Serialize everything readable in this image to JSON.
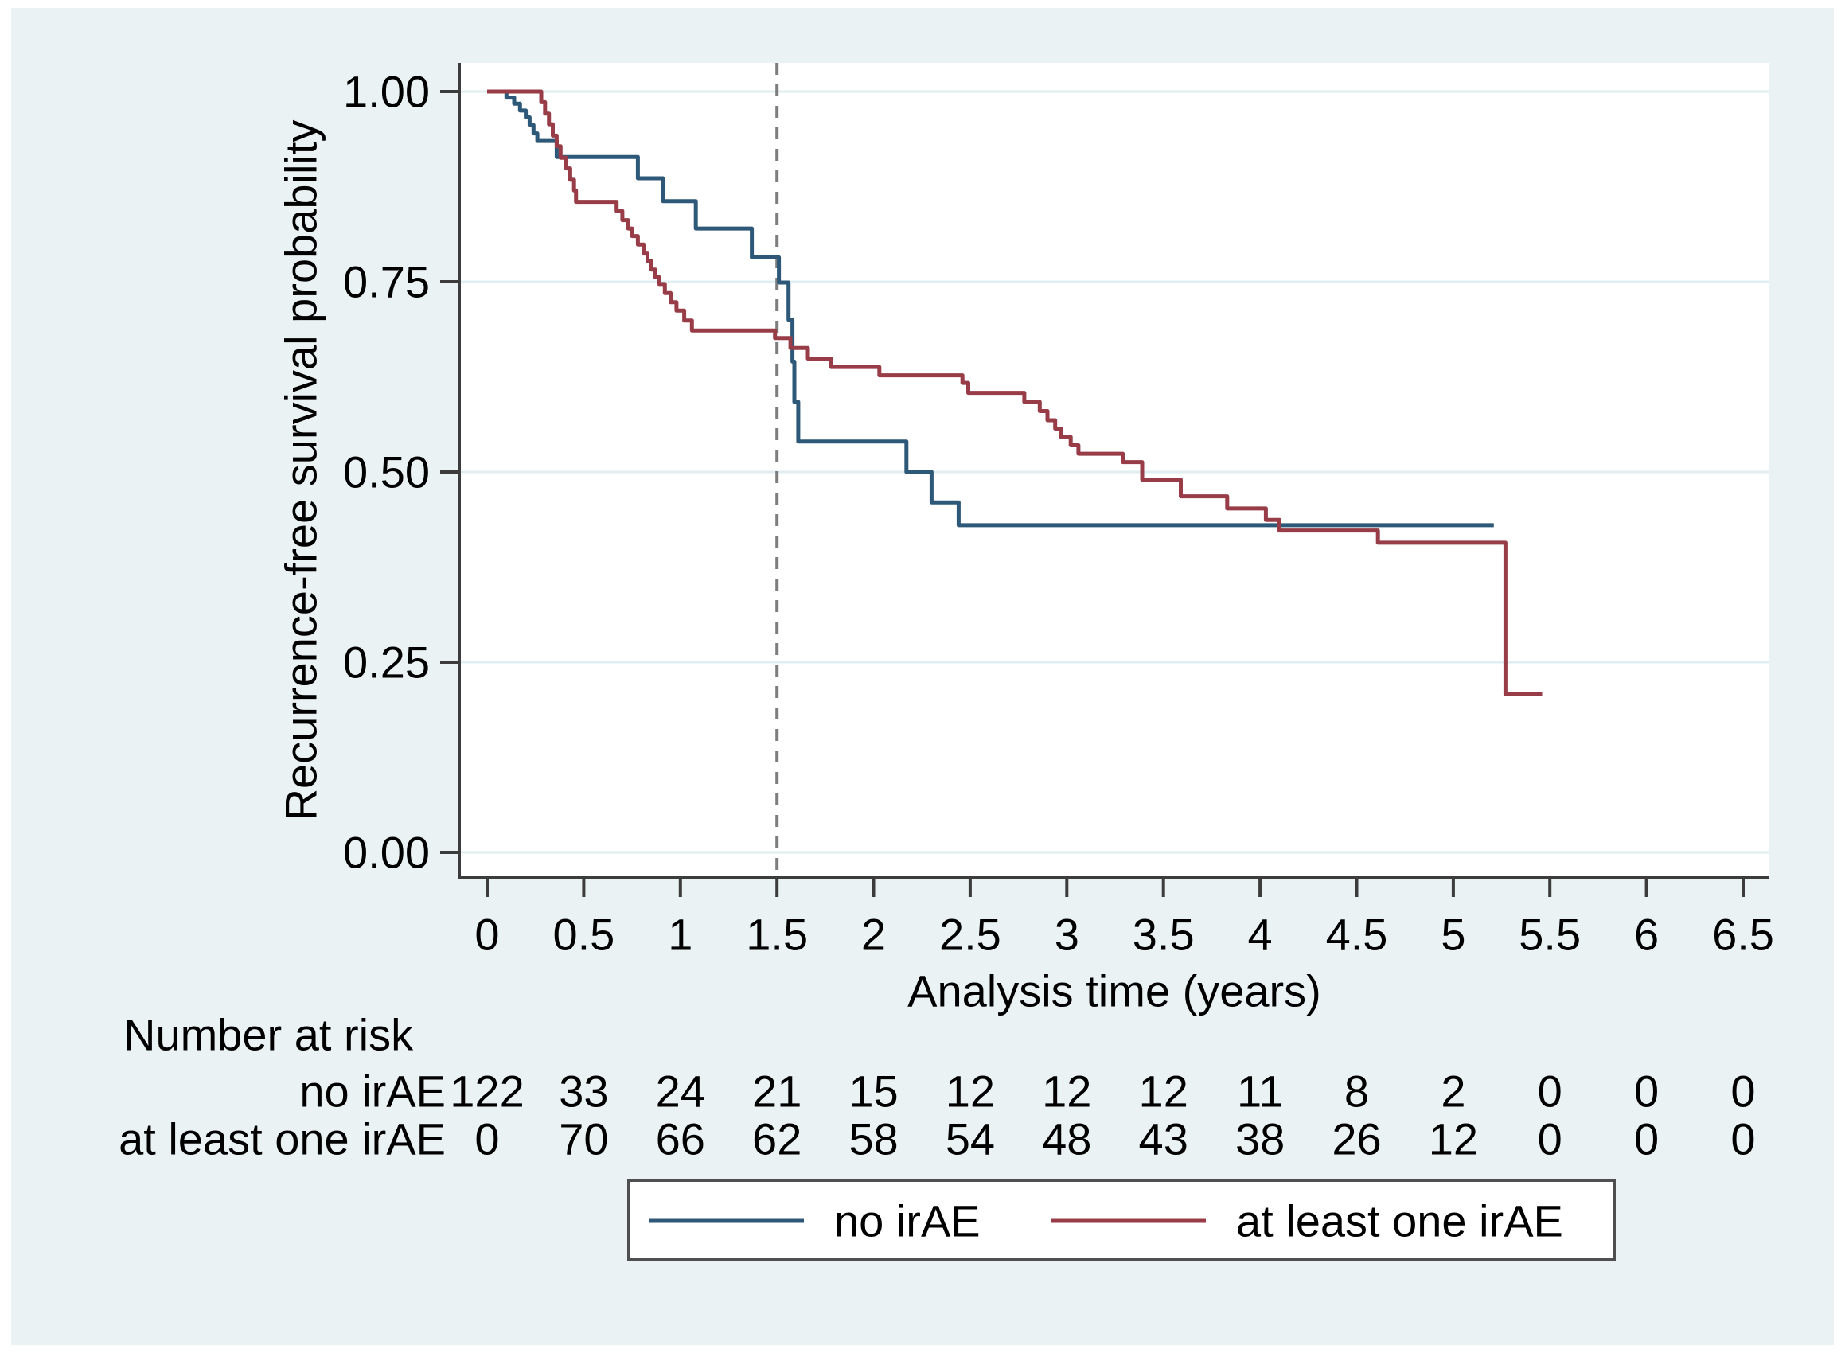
{
  "page": {
    "background": "#ffffff",
    "canvas_background": "#eaf2f3"
  },
  "style": {
    "axis_color": "#3c3c3c",
    "grid_color": "#dfeef1",
    "text_color": "#000000",
    "reference_line_color": "#7d7d7d",
    "legend_border_color": "#4f4f4f",
    "plot_background": "#ffffff"
  },
  "chart_data": {
    "type": "line",
    "subtype": "kaplan-meier-step",
    "title": "",
    "xlabel": "Analysis time (years)",
    "ylabel": "Recurrence-free survival probability",
    "xlim": [
      0,
      6.5
    ],
    "ylim": [
      0,
      1
    ],
    "grid": "horizontal",
    "legend_position": "bottom",
    "reference_line": {
      "x": 1.5,
      "style": "dashed"
    },
    "xticks": [
      {
        "value": 0,
        "label": "0"
      },
      {
        "value": 0.5,
        "label": "0.5"
      },
      {
        "value": 1,
        "label": "1"
      },
      {
        "value": 1.5,
        "label": "1.5"
      },
      {
        "value": 2,
        "label": "2"
      },
      {
        "value": 2.5,
        "label": "2.5"
      },
      {
        "value": 3,
        "label": "3"
      },
      {
        "value": 3.5,
        "label": "3.5"
      },
      {
        "value": 4,
        "label": "4"
      },
      {
        "value": 4.5,
        "label": "4.5"
      },
      {
        "value": 5,
        "label": "5"
      },
      {
        "value": 5.5,
        "label": "5.5"
      },
      {
        "value": 6,
        "label": "6"
      },
      {
        "value": 6.5,
        "label": "6.5"
      }
    ],
    "yticks": [
      {
        "value": 1.0,
        "label": "1.00"
      },
      {
        "value": 0.75,
        "label": "0.75"
      },
      {
        "value": 0.5,
        "label": "0.50"
      },
      {
        "value": 0.25,
        "label": "0.25"
      },
      {
        "value": 0.0,
        "label": "0.00"
      }
    ],
    "series": [
      {
        "name": "no irAE",
        "color": "#2d5878",
        "end_time": 5.21,
        "steps": [
          [
            0,
            1.0
          ],
          [
            0.1,
            0.992
          ],
          [
            0.14,
            0.984
          ],
          [
            0.17,
            0.975
          ],
          [
            0.2,
            0.966
          ],
          [
            0.22,
            0.956
          ],
          [
            0.24,
            0.945
          ],
          [
            0.26,
            0.935
          ],
          [
            0.36,
            0.914
          ],
          [
            0.78,
            0.886
          ],
          [
            0.91,
            0.856
          ],
          [
            1.08,
            0.82
          ],
          [
            1.37,
            0.782
          ],
          [
            1.51,
            0.749
          ],
          [
            1.56,
            0.7
          ],
          [
            1.58,
            0.645
          ],
          [
            1.59,
            0.592
          ],
          [
            1.61,
            0.54
          ],
          [
            2.17,
            0.5
          ],
          [
            2.3,
            0.46
          ],
          [
            2.44,
            0.43
          ]
        ]
      },
      {
        "name": "at least one irAE",
        "color": "#983d47",
        "end_time": 5.46,
        "steps": [
          [
            0,
            1.0
          ],
          [
            0.28,
            0.986
          ],
          [
            0.3,
            0.971
          ],
          [
            0.32,
            0.957
          ],
          [
            0.34,
            0.942
          ],
          [
            0.36,
            0.928
          ],
          [
            0.38,
            0.913
          ],
          [
            0.41,
            0.899
          ],
          [
            0.43,
            0.884
          ],
          [
            0.45,
            0.87
          ],
          [
            0.46,
            0.855
          ],
          [
            0.67,
            0.843
          ],
          [
            0.7,
            0.831
          ],
          [
            0.73,
            0.82
          ],
          [
            0.75,
            0.81
          ],
          [
            0.78,
            0.799
          ],
          [
            0.81,
            0.787
          ],
          [
            0.83,
            0.777
          ],
          [
            0.85,
            0.766
          ],
          [
            0.87,
            0.756
          ],
          [
            0.89,
            0.747
          ],
          [
            0.92,
            0.735
          ],
          [
            0.95,
            0.723
          ],
          [
            0.98,
            0.712
          ],
          [
            1.02,
            0.699
          ],
          [
            1.06,
            0.686
          ],
          [
            1.49,
            0.676
          ],
          [
            1.57,
            0.663
          ],
          [
            1.66,
            0.649
          ],
          [
            1.78,
            0.638
          ],
          [
            2.03,
            0.627
          ],
          [
            2.46,
            0.617
          ],
          [
            2.49,
            0.604
          ],
          [
            2.78,
            0.592
          ],
          [
            2.86,
            0.58
          ],
          [
            2.9,
            0.568
          ],
          [
            2.94,
            0.557
          ],
          [
            2.97,
            0.546
          ],
          [
            3.02,
            0.535
          ],
          [
            3.06,
            0.524
          ],
          [
            3.29,
            0.513
          ],
          [
            3.39,
            0.49
          ],
          [
            3.59,
            0.468
          ],
          [
            3.83,
            0.452
          ],
          [
            4.03,
            0.437
          ],
          [
            4.1,
            0.423
          ],
          [
            4.61,
            0.407
          ],
          [
            5.27,
            0.208
          ]
        ]
      }
    ],
    "risk_table": {
      "title": "Number at risk",
      "times": [
        0,
        0.5,
        1,
        1.5,
        2,
        2.5,
        3,
        3.5,
        4,
        4.5,
        5,
        5.5,
        6,
        6.5
      ],
      "rows": [
        {
          "label": "no irAE",
          "counts": [
            "122",
            "33",
            "24",
            "21",
            "15",
            "12",
            "12",
            "12",
            "11",
            "8",
            "2",
            "0",
            "0",
            "0"
          ]
        },
        {
          "label": "at least one irAE",
          "counts": [
            "0",
            "70",
            "66",
            "62",
            "58",
            "54",
            "48",
            "43",
            "38",
            "26",
            "12",
            "0",
            "0",
            "0"
          ]
        }
      ]
    },
    "legend": {
      "entries": [
        "no irAE",
        "at least one irAE"
      ]
    }
  }
}
